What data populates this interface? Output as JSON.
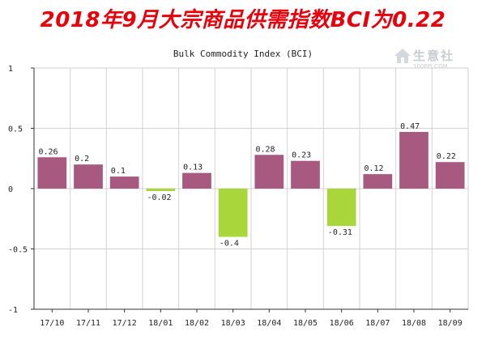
{
  "headline": "2018年9月大宗商品供需指数BCI为0.22",
  "watermark": {
    "text": "生意社",
    "sub": "100PPI.COM"
  },
  "chart_data": {
    "type": "bar",
    "title": "Bulk Commodity Index (BCI)",
    "xlabel": "",
    "ylabel": "",
    "categories": [
      "17/10",
      "17/11",
      "17/12",
      "18/01",
      "18/02",
      "18/03",
      "18/04",
      "18/05",
      "18/06",
      "18/07",
      "18/08",
      "18/09"
    ],
    "series": [
      {
        "values": [
          0.26,
          0.2,
          0.1,
          -0.02,
          0.13,
          -0.4,
          0.28,
          0.23,
          -0.31,
          0.12,
          0.47,
          0.22
        ]
      }
    ],
    "data_labels": [
      "0.26",
      "0.2",
      "0.1",
      "-0.02",
      "0.13",
      "-0.4",
      "0.28",
      "0.23",
      "-0.31",
      "0.12",
      "0.47",
      "0.22"
    ],
    "ylim": [
      -1,
      1
    ],
    "yticks": [
      {
        "value": 1,
        "label": "1"
      },
      {
        "value": 0.5,
        "label": "0.5"
      },
      {
        "value": 0,
        "label": "0"
      },
      {
        "value": -0.5,
        "label": "-0.5"
      },
      {
        "value": -1,
        "label": "-1"
      }
    ],
    "colors": {
      "positive": "#a7597f",
      "negative": "#a9d63a",
      "grid": "#d2d2d2",
      "axis": "#333333"
    },
    "grid": true,
    "legend": "none"
  }
}
